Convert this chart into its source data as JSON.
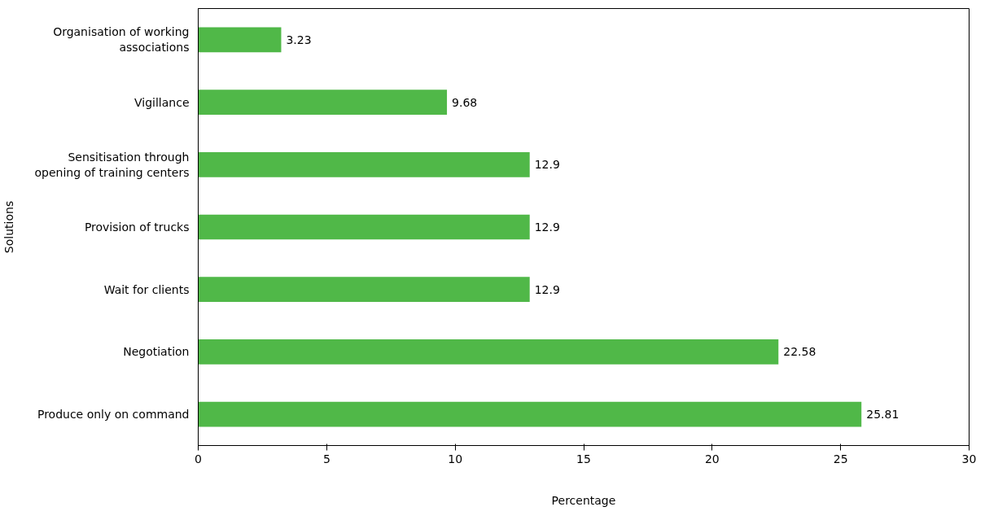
{
  "chart_data": {
    "type": "bar",
    "orientation": "horizontal",
    "xlabel": "Percentage",
    "ylabel": "Solutions",
    "categories": [
      "Organisation of working associations",
      "Vigillance",
      "Sensitisation through opening of training centers",
      "Provision of trucks",
      "Wait for clients",
      "Negotiation",
      "Produce only on command"
    ],
    "values": [
      3.23,
      9.68,
      12.9,
      12.9,
      12.9,
      22.58,
      25.81
    ],
    "color": "#50b848",
    "xlim": [
      0,
      30
    ],
    "xticks": [
      0,
      5,
      10,
      15,
      20,
      25,
      30
    ],
    "data_labels": true,
    "grid": false
  }
}
